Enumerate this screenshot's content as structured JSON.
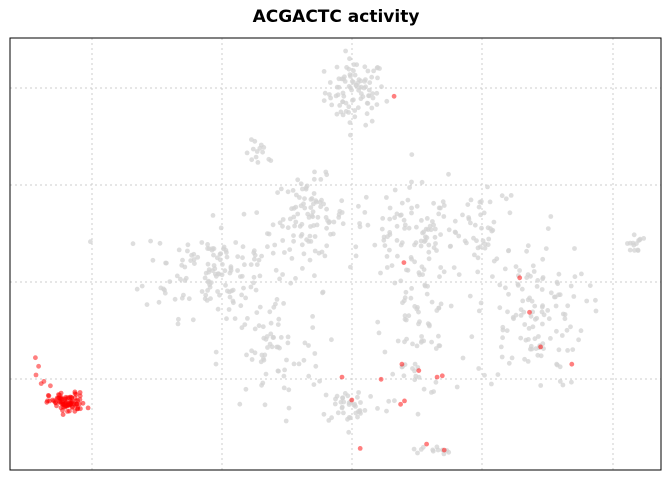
{
  "chart_data": {
    "type": "scatter",
    "title": "ACGACTC activity",
    "xlabel": "",
    "ylabel": "",
    "grid": true,
    "axes_ticks_visible": false,
    "colors": {
      "background": "#d3d3d3",
      "highlight": "#ff0000",
      "grid": "#cccccc",
      "axis": "#000000"
    },
    "xlim": [
      0,
      100
    ],
    "ylim": [
      0,
      100
    ],
    "background_clusters": [
      {
        "name": "top",
        "cx": 53,
        "cy": 87.5,
        "sx": 2.3,
        "sy": 3.8,
        "n": 90
      },
      {
        "name": "upper-left-small",
        "cx": 38.5,
        "cy": 73,
        "sx": 1.2,
        "sy": 1.6,
        "n": 14
      },
      {
        "name": "left-mid",
        "cx": 31.5,
        "cy": 46.5,
        "sx": 5.5,
        "sy": 5.5,
        "n": 140
      },
      {
        "name": "center-arc",
        "cx": 46,
        "cy": 58.5,
        "sx": 2.8,
        "sy": 4.5,
        "n": 90
      },
      {
        "name": "center-right",
        "cx": 65,
        "cy": 55,
        "sx": 7.5,
        "sy": 5.5,
        "n": 140
      },
      {
        "name": "center-lower",
        "cx": 62.5,
        "cy": 33.5,
        "sx": 2.6,
        "sy": 8.5,
        "n": 80
      },
      {
        "name": "bottom-left-mid",
        "cx": 40,
        "cy": 27,
        "sx": 4,
        "sy": 7,
        "n": 70
      },
      {
        "name": "bottom-center",
        "cx": 52.5,
        "cy": 15,
        "sx": 2.5,
        "sy": 2.2,
        "n": 40
      },
      {
        "name": "right",
        "cx": 80,
        "cy": 36,
        "sx": 4.2,
        "sy": 8.5,
        "n": 130
      },
      {
        "name": "far-right",
        "cx": 96,
        "cy": 52.5,
        "sx": 0.6,
        "sy": 1.1,
        "n": 14
      },
      {
        "name": "bottom-small",
        "cx": 64.5,
        "cy": 4.5,
        "sx": 1.5,
        "sy": 0.6,
        "n": 12
      }
    ],
    "highlight_cluster": {
      "cx": 8.8,
      "cy": 15.5,
      "sx": 1.4,
      "sy": 1.2,
      "n": 85
    },
    "highlight_points": [
      [
        4,
        22
      ],
      [
        4.8,
        20
      ],
      [
        5.2,
        20.5
      ],
      [
        6.2,
        19.5
      ],
      [
        4.4,
        24
      ],
      [
        3.9,
        26
      ],
      [
        59,
        86.5
      ],
      [
        78.3,
        44.5
      ],
      [
        79.8,
        36.5
      ],
      [
        81.5,
        28.5
      ],
      [
        86.3,
        24.5
      ],
      [
        60.5,
        48
      ],
      [
        60.2,
        24.5
      ],
      [
        60.6,
        16
      ],
      [
        60,
        15.2
      ],
      [
        62.8,
        23
      ],
      [
        65.6,
        21.5
      ],
      [
        66.4,
        21.8
      ],
      [
        51,
        21.5
      ],
      [
        57,
        21
      ],
      [
        53.8,
        5
      ],
      [
        64,
        6
      ],
      [
        66.7,
        4.6
      ],
      [
        52.5,
        16.2
      ]
    ]
  }
}
